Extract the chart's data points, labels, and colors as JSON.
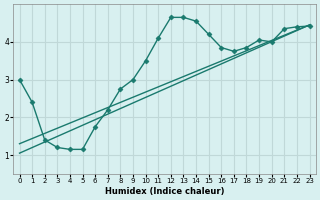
{
  "xlabel": "Humidex (Indice chaleur)",
  "ylabel": "",
  "bg_color": "#d8f0f0",
  "grid_color": "#c0d8d8",
  "line_color": "#1a7a6e",
  "xlim": [
    -0.5,
    23.5
  ],
  "ylim": [
    0.5,
    5.0
  ],
  "yticks": [
    1,
    2,
    3,
    4
  ],
  "xticks": [
    0,
    1,
    2,
    3,
    4,
    5,
    6,
    7,
    8,
    9,
    10,
    11,
    12,
    13,
    14,
    15,
    16,
    17,
    18,
    19,
    20,
    21,
    22,
    23
  ],
  "main_x": [
    0,
    1,
    2,
    3,
    4,
    5,
    6,
    7,
    8,
    9,
    10,
    11,
    12,
    13,
    14,
    15,
    16,
    17,
    18,
    19,
    20,
    21,
    22,
    23
  ],
  "main_y": [
    3.0,
    2.4,
    1.4,
    1.2,
    1.15,
    1.15,
    1.75,
    2.2,
    2.75,
    3.0,
    3.5,
    4.1,
    4.65,
    4.65,
    4.55,
    4.2,
    3.85,
    3.75,
    3.85,
    4.05,
    4.0,
    4.35,
    4.4,
    4.42
  ],
  "line1_x": [
    0,
    23
  ],
  "line1_y": [
    1.3,
    4.45
  ],
  "line2_x": [
    0,
    23
  ],
  "line2_y": [
    1.05,
    4.45
  ]
}
